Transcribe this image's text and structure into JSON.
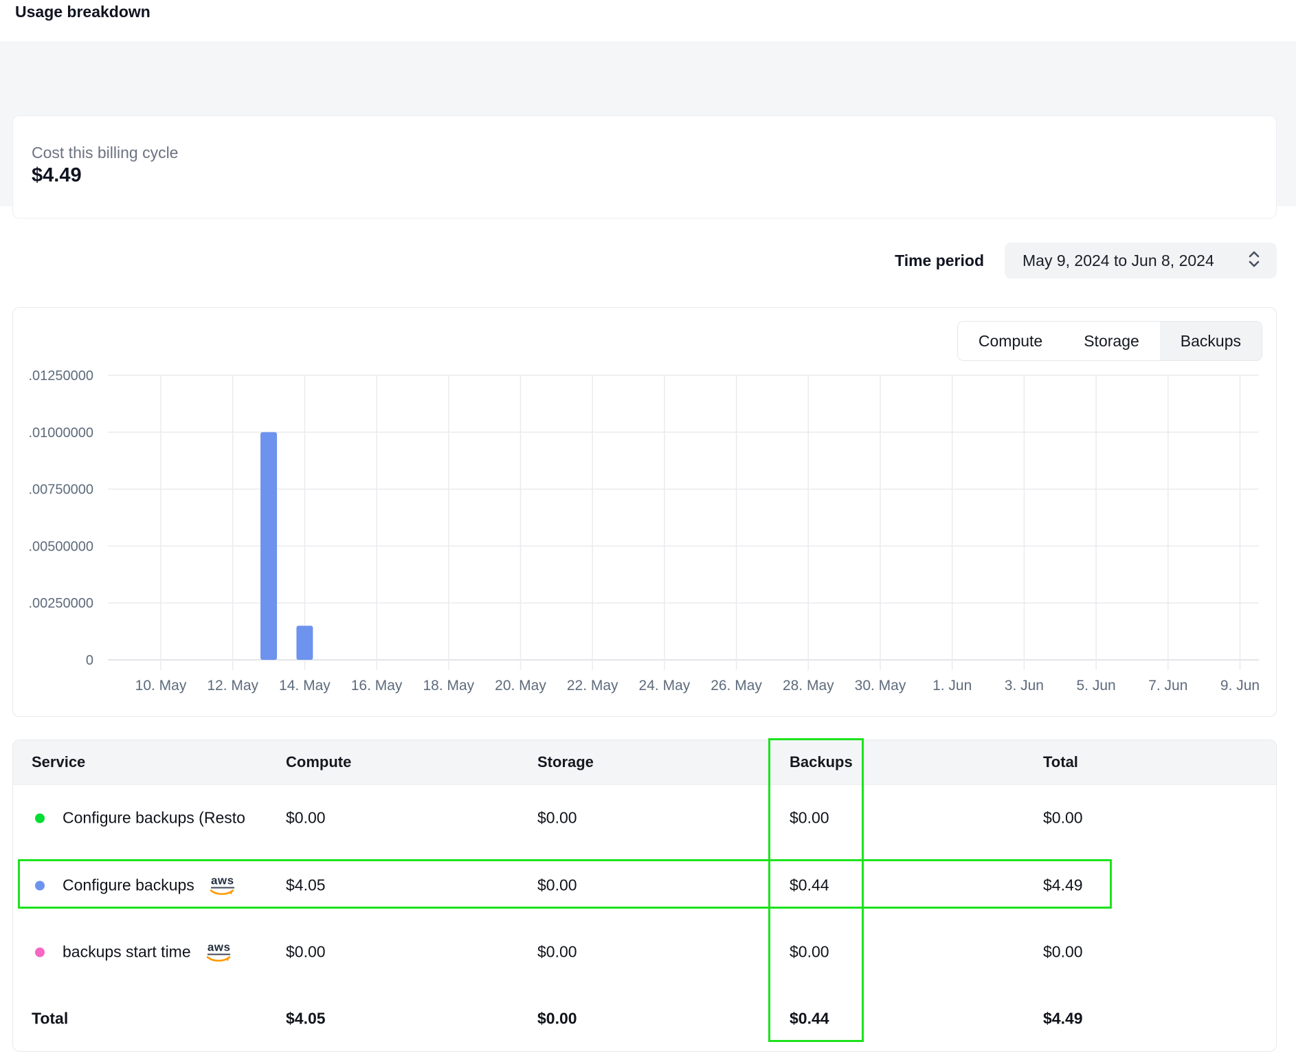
{
  "page": {
    "title": "Usage breakdown"
  },
  "billing_summary": {
    "label": "Cost this billing cycle",
    "amount": "$4.49"
  },
  "time_period": {
    "label": "Time period",
    "value": "May 9, 2024 to Jun 8, 2024"
  },
  "tabs": [
    {
      "label": "Compute",
      "selected": false
    },
    {
      "label": "Storage",
      "selected": false
    },
    {
      "label": "Backups",
      "selected": true
    }
  ],
  "chart_data": {
    "type": "bar",
    "active_series": "Backups",
    "title": "",
    "xlabel": "",
    "ylabel": "",
    "ylim": [
      0,
      0.0125
    ],
    "grid": true,
    "x_tick_labels": [
      "10. May",
      "12. May",
      "14. May",
      "16. May",
      "18. May",
      "20. May",
      "22. May",
      "24. May",
      "26. May",
      "28. May",
      "30. May",
      "1. Jun",
      "3. Jun",
      "5. Jun",
      "7. Jun",
      "9. Jun"
    ],
    "days_per_tick": 2,
    "y_tick_labels": [
      ".01250000",
      ".01000000",
      ".00750000",
      ".00500000",
      ".00250000",
      "0"
    ],
    "bars": [
      {
        "date": "13. May",
        "days_from_first_tick": 3,
        "value": 0.01
      },
      {
        "date": "14. May",
        "days_from_first_tick": 4,
        "value": 0.0015
      }
    ],
    "bar_color": "#6e93ee"
  },
  "table": {
    "columns": [
      "Service",
      "Compute",
      "Storage",
      "Backups",
      "Total"
    ],
    "rows": [
      {
        "service": "Configure backups (Resto",
        "dot_color": "#00dd33",
        "provider": "",
        "compute": "$0.00",
        "storage": "$0.00",
        "backups": "$0.00",
        "total": "$0.00"
      },
      {
        "service": "Configure backups",
        "dot_color": "#6e93ee",
        "provider": "aws",
        "compute": "$4.05",
        "storage": "$0.00",
        "backups": "$0.44",
        "total": "$4.49"
      },
      {
        "service": "backups start time",
        "dot_color": "#f767c4",
        "provider": "aws",
        "compute": "$0.00",
        "storage": "$0.00",
        "backups": "$0.00",
        "total": "$0.00"
      }
    ],
    "total_row": {
      "label": "Total",
      "compute": "$4.05",
      "storage": "$0.00",
      "backups": "$0.44",
      "total": "$4.49"
    }
  },
  "annotations": {
    "highlight_color": "#1ce31c",
    "highlighted_column": "Backups",
    "highlighted_row": "Configure backups"
  },
  "colors": {
    "bar_blue": "#6e93ee",
    "aws_orange": "#ff9900",
    "band_gray": "#f5f6f8"
  }
}
